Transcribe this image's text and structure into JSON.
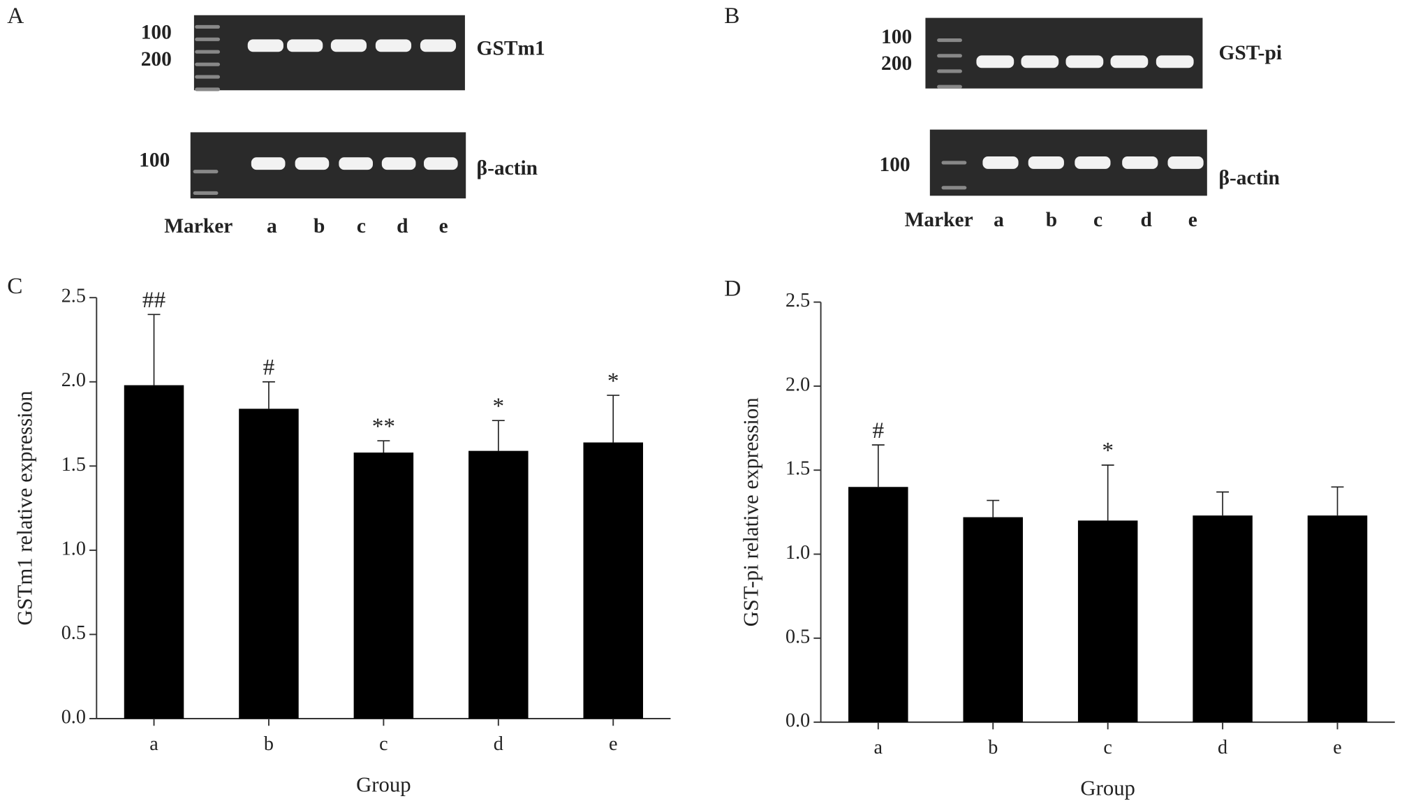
{
  "panels": [
    "A",
    "B",
    "C",
    "D"
  ],
  "gels": [
    {
      "top_markers": [
        "100",
        "200"
      ],
      "top_label": "GSTm1",
      "bottom_marker": "100",
      "bottom_label": "β-actin",
      "lanes": [
        "Marker",
        "a",
        "b",
        "c",
        "d",
        "e"
      ]
    },
    {
      "top_markers": [
        "100",
        "200"
      ],
      "top_label": "GST-pi",
      "bottom_marker": "100",
      "bottom_label": "β-actin",
      "lanes": [
        "Marker",
        "a",
        "b",
        "c",
        "d",
        "e"
      ]
    }
  ],
  "chart_data": [
    {
      "type": "bar",
      "categories": [
        "a",
        "b",
        "c",
        "d",
        "e"
      ],
      "values": [
        1.98,
        1.84,
        1.58,
        1.59,
        1.64
      ],
      "errors": [
        0.42,
        0.16,
        0.07,
        0.18,
        0.28
      ],
      "annotations": [
        "##",
        "#",
        "**",
        "*",
        "*"
      ],
      "color": "#000000",
      "x_label": "Group",
      "y_label": "GSTm1 relative expression",
      "ylim": [
        0,
        2.5
      ],
      "yticks": [
        {
          "value": 0,
          "label": "0.0"
        },
        {
          "value": 0.5,
          "label": "0.5"
        },
        {
          "value": 1,
          "label": "1.0"
        },
        {
          "value": 1.5,
          "label": "1.5"
        },
        {
          "value": 2,
          "label": "2.0"
        },
        {
          "value": 2.5,
          "label": "2.5"
        }
      ]
    },
    {
      "type": "bar",
      "categories": [
        "a",
        "b",
        "c",
        "d",
        "e"
      ],
      "values": [
        1.4,
        1.22,
        1.2,
        1.23,
        1.23
      ],
      "errors": [
        0.25,
        0.1,
        0.33,
        0.14,
        0.17
      ],
      "annotations": [
        "#",
        null,
        "*",
        null,
        null
      ],
      "color": "#000000",
      "x_label": "Group",
      "y_label": "GST-pi relative expression",
      "ylim": [
        0,
        2.5
      ],
      "yticks": [
        {
          "value": 0,
          "label": "0.0"
        },
        {
          "value": 0.5,
          "label": "0.5"
        },
        {
          "value": 1,
          "label": "1.0"
        },
        {
          "value": 1.5,
          "label": "1.5"
        },
        {
          "value": 2,
          "label": "2.0"
        },
        {
          "value": 2.5,
          "label": "2.5"
        }
      ]
    }
  ]
}
